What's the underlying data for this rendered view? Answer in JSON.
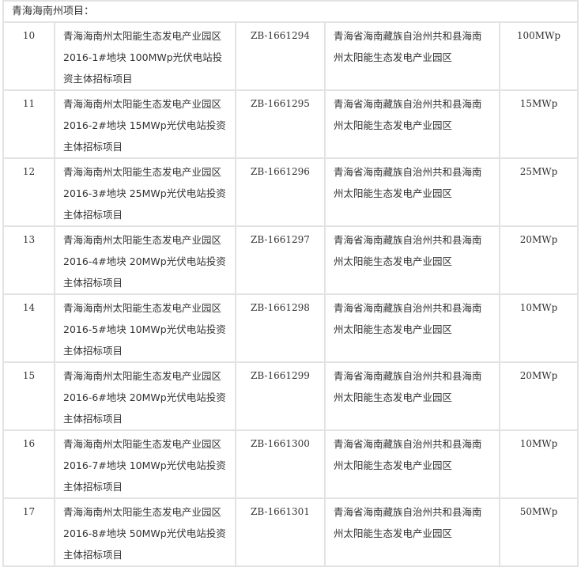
{
  "section_title": "青海海南州项目：",
  "rows": [
    {
      "no": "10",
      "name": "青海海南州太阳能生态发电产业园区 2016-1#地块 100MWp光伏电站投资主体招标项目",
      "code": "ZB-1661294",
      "location": "青海省海南藏族自治州共和县海南州太阳能生态发电产业园区",
      "capacity": "100MWp"
    },
    {
      "no": "11",
      "name": "青海海南州太阳能生态发电产业园区 2016-2#地块 15MWp光伏电站投资主体招标项目",
      "code": "ZB-1661295",
      "location": "青海省海南藏族自治州共和县海南州太阳能生态发电产业园区",
      "capacity": "15MWp"
    },
    {
      "no": "12",
      "name": "青海海南州太阳能生态发电产业园区 2016-3#地块 25MWp光伏电站投资主体招标项目",
      "code": "ZB-1661296",
      "location": "青海省海南藏族自治州共和县海南州太阳能生态发电产业园区",
      "capacity": "25MWp"
    },
    {
      "no": "13",
      "name": "青海海南州太阳能生态发电产业园区 2016-4#地块 20MWp光伏电站投资主体招标项目",
      "code": "ZB-1661297",
      "location": "青海省海南藏族自治州共和县海南州太阳能生态发电产业园区",
      "capacity": "20MWp"
    },
    {
      "no": "14",
      "name": "青海海南州太阳能生态发电产业园区 2016-5#地块 10MWp光伏电站投资主体招标项目",
      "code": "ZB-1661298",
      "location": "青海省海南藏族自治州共和县海南州太阳能生态发电产业园区",
      "capacity": "10MWp"
    },
    {
      "no": "15",
      "name": "青海海南州太阳能生态发电产业园区 2016-6#地块 20MWp光伏电站投资主体招标项目",
      "code": "ZB-1661299",
      "location": "青海省海南藏族自治州共和县海南州太阳能生态发电产业园区",
      "capacity": "20MWp"
    },
    {
      "no": "16",
      "name": "青海海南州太阳能生态发电产业园区 2016-7#地块 10MWp光伏电站投资主体招标项目",
      "code": "ZB-1661300",
      "location": "青海省海南藏族自治州共和县海南州太阳能生态发电产业园区",
      "capacity": "10MWp"
    },
    {
      "no": "17",
      "name": "青海海南州太阳能生态发电产业园区 2016-8#地块 50MWp光伏电站投资主体招标项目",
      "code": "ZB-1661301",
      "location": "青海省海南藏族自治州共和县海南州太阳能生态发电产业园区",
      "capacity": "50MWp"
    }
  ]
}
